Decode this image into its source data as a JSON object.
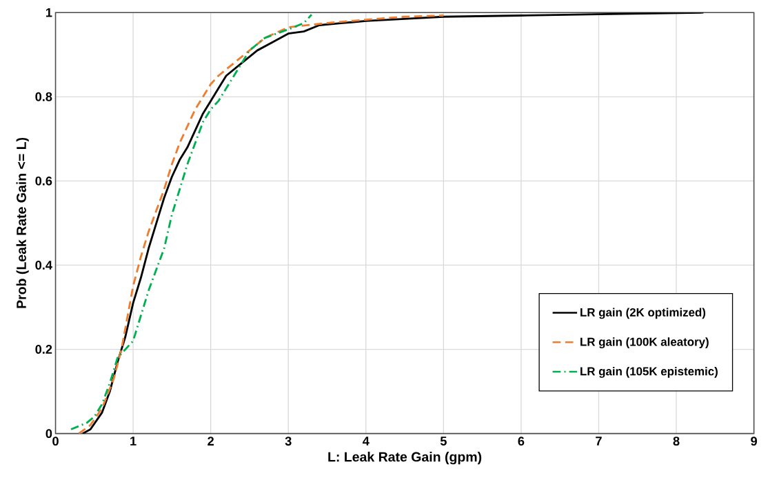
{
  "chart_data": {
    "type": "line",
    "xlabel": "L: Leak Rate Gain (gpm)",
    "ylabel": "Prob (Leak Rate Gain <= L)",
    "xlim": [
      0,
      9
    ],
    "xticks": [
      0,
      1,
      2,
      3,
      4,
      5,
      6,
      7,
      8,
      9
    ],
    "ylim": [
      0,
      1
    ],
    "yticks": [
      0,
      0.2,
      0.4,
      0.6,
      0.8,
      1
    ],
    "grid": true,
    "legend": "right",
    "marker": "none",
    "series": [
      {
        "name": "LR gain (2K optimized)",
        "color": "#000000",
        "line_style": "solid",
        "x": [
          0.35,
          0.45,
          0.6,
          0.7,
          0.8,
          0.9,
          1.0,
          1.1,
          1.2,
          1.3,
          1.4,
          1.5,
          1.6,
          1.7,
          1.8,
          1.9,
          2.0,
          2.1,
          2.2,
          2.4,
          2.6,
          2.8,
          3.0,
          3.2,
          3.4,
          3.7,
          4.0,
          4.5,
          5.0,
          6.0,
          7.0,
          8.35
        ],
        "values": [
          0,
          0.01,
          0.05,
          0.1,
          0.17,
          0.23,
          0.31,
          0.37,
          0.44,
          0.5,
          0.56,
          0.61,
          0.65,
          0.68,
          0.72,
          0.76,
          0.79,
          0.82,
          0.85,
          0.88,
          0.91,
          0.93,
          0.95,
          0.955,
          0.97,
          0.975,
          0.98,
          0.985,
          0.99,
          0.993,
          0.996,
          1.0
        ]
      },
      {
        "name": "LR gain (100K aleatory)",
        "color": "#ed7d31",
        "line_style": "dashed",
        "x": [
          0.3,
          0.45,
          0.6,
          0.75,
          0.85,
          1.0,
          1.1,
          1.2,
          1.3,
          1.4,
          1.5,
          1.6,
          1.7,
          1.8,
          2.0,
          2.1,
          2.3,
          2.5,
          2.7,
          3.0,
          3.5,
          4.0,
          4.5,
          5.0
        ],
        "values": [
          0,
          0.02,
          0.06,
          0.13,
          0.2,
          0.35,
          0.42,
          0.48,
          0.53,
          0.58,
          0.64,
          0.69,
          0.73,
          0.77,
          0.83,
          0.85,
          0.88,
          0.91,
          0.94,
          0.965,
          0.975,
          0.983,
          0.99,
          0.993
        ]
      },
      {
        "name": "LR gain (105K epistemic)",
        "color": "#00b050",
        "line_style": "dashdot",
        "x": [
          0.2,
          0.4,
          0.5,
          0.6,
          0.7,
          0.8,
          0.9,
          1.0,
          1.1,
          1.2,
          1.3,
          1.4,
          1.5,
          1.6,
          1.7,
          1.8,
          1.9,
          2.0,
          2.1,
          2.2,
          2.3,
          2.4,
          2.5,
          2.7,
          3.0,
          3.2,
          3.3
        ],
        "values": [
          0.01,
          0.025,
          0.04,
          0.07,
          0.12,
          0.18,
          0.2,
          0.22,
          0.28,
          0.34,
          0.39,
          0.44,
          0.52,
          0.58,
          0.64,
          0.69,
          0.74,
          0.77,
          0.79,
          0.82,
          0.85,
          0.88,
          0.91,
          0.94,
          0.96,
          0.975,
          0.995
        ]
      }
    ]
  }
}
